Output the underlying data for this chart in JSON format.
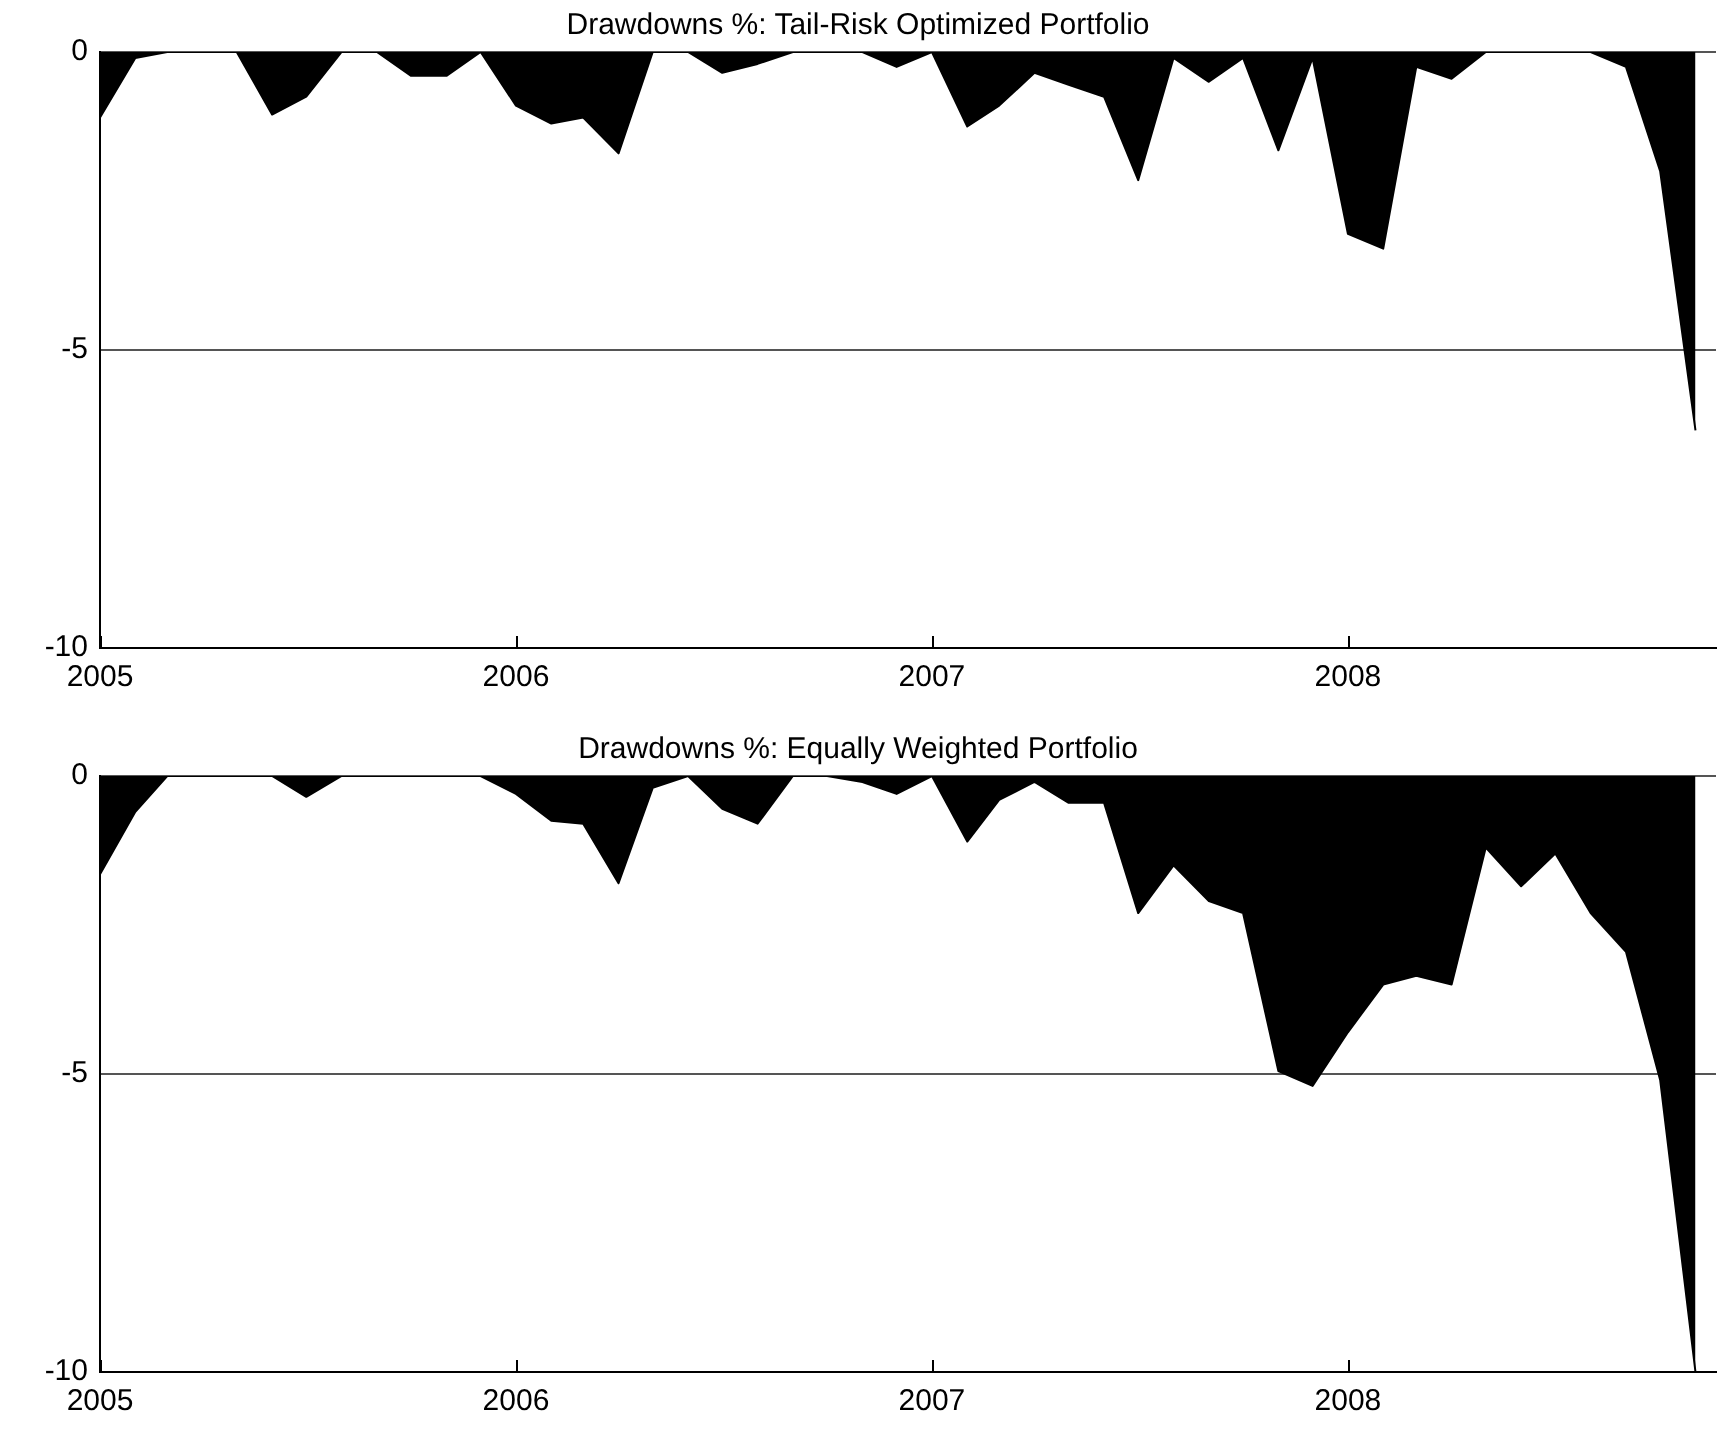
{
  "chart_data": [
    {
      "type": "area",
      "title": "Drawdowns %: Tail-Risk Optimized Portfolio",
      "color": "#000000",
      "x": [
        "2005-01",
        "2005-02",
        "2005-03",
        "2005-04",
        "2005-05",
        "2005-06",
        "2005-07",
        "2005-08",
        "2005-09",
        "2005-10",
        "2005-11",
        "2005-12",
        "2006-01",
        "2006-02",
        "2006-03",
        "2006-04",
        "2006-05",
        "2006-06",
        "2006-07",
        "2006-08",
        "2006-09",
        "2006-10",
        "2006-11",
        "2006-12",
        "2007-01",
        "2007-02",
        "2007-03",
        "2007-04",
        "2007-05",
        "2007-06",
        "2007-07",
        "2007-08",
        "2007-09",
        "2007-10",
        "2007-11",
        "2007-12",
        "2008-01",
        "2008-02",
        "2008-03",
        "2008-04",
        "2008-05",
        "2008-06",
        "2008-07",
        "2008-08",
        "2008-09",
        "2008-10",
        "2008-11"
      ],
      "values": [
        -1.1,
        -0.1,
        0,
        0,
        0,
        -1.05,
        -0.75,
        0,
        0,
        -0.4,
        -0.4,
        0,
        -0.9,
        -1.2,
        -1.1,
        -1.7,
        0,
        0,
        -0.35,
        -0.2,
        0,
        0,
        0,
        -0.25,
        0,
        -1.25,
        -0.9,
        -0.35,
        -0.55,
        -0.75,
        -2.15,
        -0.1,
        -0.5,
        -0.1,
        -1.65,
        -0.1,
        -3.05,
        -3.3,
        -0.25,
        -0.45,
        0,
        0,
        0,
        0,
        -0.25,
        -2,
        -6.35
      ],
      "xlim": [
        "2005",
        "2008-11-19"
      ],
      "ylim": [
        -10,
        0
      ],
      "xticks": [
        "2005",
        "2006",
        "2007",
        "2008"
      ],
      "yticks": [
        -10,
        -5,
        0
      ],
      "grid": "y"
    },
    {
      "type": "area",
      "title": "Drawdowns %: Equally Weighted Portfolio",
      "color": "#000000",
      "x": [
        "2005-01",
        "2005-02",
        "2005-03",
        "2005-04",
        "2005-05",
        "2005-06",
        "2005-07",
        "2005-08",
        "2005-09",
        "2005-10",
        "2005-11",
        "2005-12",
        "2006-01",
        "2006-02",
        "2006-03",
        "2006-04",
        "2006-05",
        "2006-06",
        "2006-07",
        "2006-08",
        "2006-09",
        "2006-10",
        "2006-11",
        "2006-12",
        "2007-01",
        "2007-02",
        "2007-03",
        "2007-04",
        "2007-05",
        "2007-06",
        "2007-07",
        "2007-08",
        "2007-09",
        "2007-10",
        "2007-11",
        "2007-12",
        "2008-01",
        "2008-02",
        "2008-03",
        "2008-04",
        "2008-05",
        "2008-06",
        "2008-07",
        "2008-08",
        "2008-09",
        "2008-10",
        "2008-11"
      ],
      "values": [
        -1.65,
        -0.6,
        0,
        0,
        0,
        0,
        -0.35,
        0,
        0,
        0,
        0,
        0,
        -0.3,
        -0.75,
        -0.8,
        -1.8,
        -0.2,
        0,
        -0.55,
        -0.8,
        0,
        0,
        -0.1,
        -0.3,
        0,
        -1.1,
        -0.4,
        -0.1,
        -0.45,
        -0.45,
        -2.3,
        -1.5,
        -2.1,
        -2.3,
        -4.95,
        -5.2,
        -4.3,
        -3.5,
        -3.35,
        -3.5,
        -1.2,
        -1.85,
        -1.3,
        -2.3,
        -2.95,
        -5.1,
        -10
      ],
      "xlim": [
        "2005",
        "2008-11-19"
      ],
      "ylim": [
        -10,
        0
      ],
      "xticks": [
        "2005",
        "2006",
        "2007",
        "2008"
      ],
      "yticks": [
        -10,
        -5,
        0
      ],
      "grid": "y"
    }
  ]
}
